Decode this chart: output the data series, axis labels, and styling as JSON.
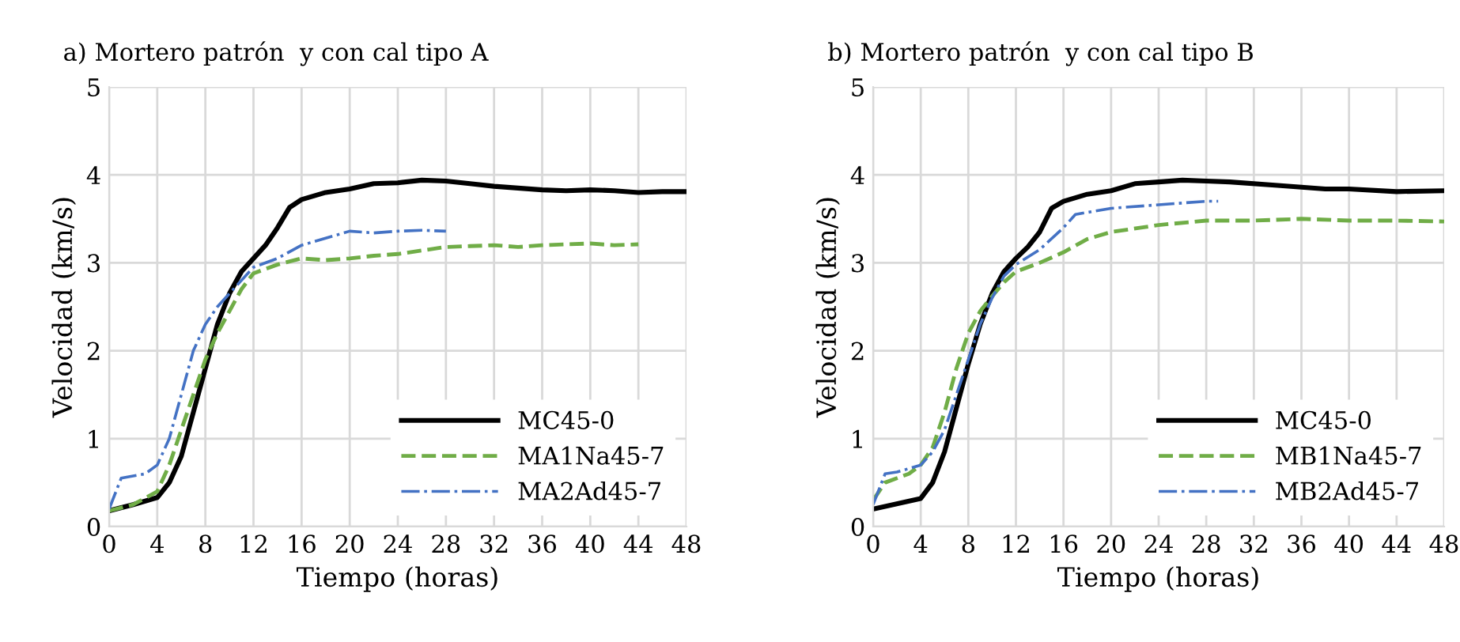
{
  "chart_data": [
    {
      "type": "line",
      "title": "a) Mortero patrón  y con cal tipo A",
      "xlabel": "Tiempo (horas)",
      "ylabel": "Velocidad (km/s)",
      "xlim": [
        0,
        48
      ],
      "ylim": [
        0,
        5
      ],
      "xticks": [
        0,
        4,
        8,
        12,
        16,
        20,
        24,
        28,
        32,
        36,
        40,
        44,
        48
      ],
      "yticks": [
        0,
        1,
        2,
        3,
        4,
        5
      ],
      "grid": true,
      "legend": "bottom right",
      "marker": "none",
      "series": [
        {
          "name": "MC45-0",
          "color": "#000000",
          "line_style": "solid",
          "x": [
            0,
            2,
            4,
            5,
            6,
            7,
            8,
            9,
            10,
            11,
            12,
            13,
            14,
            15,
            16,
            18,
            20,
            22,
            24,
            26,
            28,
            30,
            32,
            34,
            36,
            38,
            40,
            42,
            44,
            46,
            48
          ],
          "values": [
            0.18,
            0.25,
            0.33,
            0.5,
            0.8,
            1.3,
            1.8,
            2.3,
            2.65,
            2.9,
            3.05,
            3.2,
            3.4,
            3.63,
            3.72,
            3.8,
            3.84,
            3.9,
            3.91,
            3.94,
            3.93,
            3.9,
            3.87,
            3.85,
            3.83,
            3.82,
            3.83,
            3.82,
            3.8,
            3.81,
            3.81
          ]
        },
        {
          "name": "MA1Na45-7",
          "color": "#70ad47",
          "line_style": "dashed",
          "x": [
            0,
            2,
            4,
            5,
            6,
            7,
            8,
            9,
            10,
            11,
            12,
            14,
            16,
            18,
            20,
            22,
            24,
            26,
            28,
            30,
            32,
            34,
            36,
            38,
            40,
            42,
            44
          ],
          "values": [
            0.18,
            0.25,
            0.4,
            0.7,
            1.1,
            1.5,
            1.9,
            2.2,
            2.45,
            2.7,
            2.88,
            2.98,
            3.05,
            3.03,
            3.05,
            3.08,
            3.1,
            3.14,
            3.18,
            3.19,
            3.2,
            3.18,
            3.2,
            3.21,
            3.22,
            3.2,
            3.21
          ]
        },
        {
          "name": "MA2Ad45-7",
          "color": "#4472c4",
          "line_style": "dashdot",
          "x": [
            0,
            1,
            3,
            4,
            5,
            6,
            7,
            8,
            9,
            10,
            11,
            12,
            14,
            16,
            18,
            20,
            22,
            24,
            26,
            28
          ],
          "values": [
            0.2,
            0.55,
            0.6,
            0.7,
            1.0,
            1.5,
            2.0,
            2.3,
            2.5,
            2.65,
            2.8,
            2.95,
            3.05,
            3.2,
            3.28,
            3.36,
            3.34,
            3.36,
            3.37,
            3.36
          ]
        }
      ]
    },
    {
      "type": "line",
      "title": "b) Mortero patrón  y con cal tipo B",
      "xlabel": "Tiempo (horas)",
      "ylabel": "Velocidad (km/s)",
      "xlim": [
        0,
        48
      ],
      "ylim": [
        0,
        5
      ],
      "xticks": [
        0,
        4,
        8,
        12,
        16,
        20,
        24,
        28,
        32,
        36,
        40,
        44,
        48
      ],
      "yticks": [
        0,
        1,
        2,
        3,
        4,
        5
      ],
      "grid": true,
      "legend": "bottom right",
      "marker": "none",
      "series": [
        {
          "name": "MC45-0",
          "color": "#000000",
          "line_style": "solid",
          "x": [
            0,
            4,
            5,
            6,
            7,
            8,
            9,
            10,
            11,
            12,
            13,
            14,
            15,
            16,
            18,
            20,
            22,
            24,
            26,
            28,
            30,
            34,
            38,
            40,
            44,
            48
          ],
          "values": [
            0.2,
            0.32,
            0.5,
            0.85,
            1.35,
            1.85,
            2.3,
            2.65,
            2.9,
            3.05,
            3.18,
            3.35,
            3.62,
            3.7,
            3.78,
            3.82,
            3.9,
            3.92,
            3.94,
            3.93,
            3.92,
            3.88,
            3.84,
            3.84,
            3.81,
            3.82
          ]
        },
        {
          "name": "MB1Na45-7",
          "color": "#70ad47",
          "line_style": "dashed",
          "x": [
            0,
            1,
            3,
            4,
            5,
            6,
            7,
            8,
            9,
            10,
            11,
            12,
            14,
            16,
            18,
            20,
            24,
            28,
            32,
            36,
            40,
            44,
            48
          ],
          "values": [
            0.3,
            0.5,
            0.6,
            0.7,
            0.9,
            1.3,
            1.8,
            2.2,
            2.45,
            2.62,
            2.78,
            2.9,
            3.0,
            3.12,
            3.27,
            3.35,
            3.43,
            3.48,
            3.48,
            3.5,
            3.48,
            3.48,
            3.47
          ]
        },
        {
          "name": "MB2Ad45-7",
          "color": "#4472c4",
          "line_style": "dashdot",
          "x": [
            0,
            1,
            2,
            4,
            5,
            6,
            7,
            8,
            9,
            10,
            11,
            12,
            14,
            16,
            17,
            20,
            24,
            28,
            29
          ],
          "values": [
            0.25,
            0.6,
            0.62,
            0.7,
            0.85,
            1.1,
            1.5,
            1.9,
            2.3,
            2.6,
            2.85,
            2.98,
            3.15,
            3.4,
            3.55,
            3.62,
            3.66,
            3.7,
            3.7
          ]
        }
      ]
    }
  ]
}
